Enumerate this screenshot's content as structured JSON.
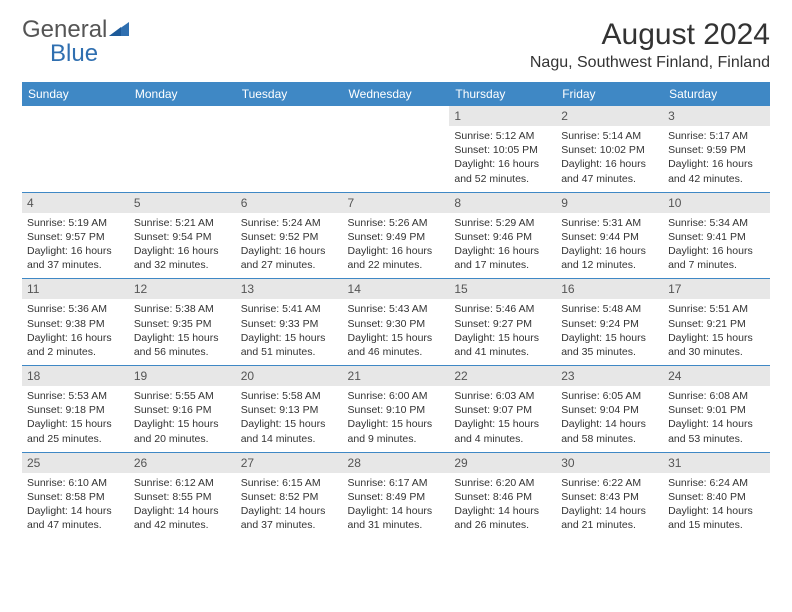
{
  "brand": {
    "part1": "General",
    "part2": "Blue"
  },
  "title": "August 2024",
  "location": "Nagu, Southwest Finland, Finland",
  "colors": {
    "header_bg": "#3f88c5",
    "header_text": "#ffffff",
    "daynum_bg": "#e7e7e7",
    "rule": "#3f88c5",
    "text": "#333333",
    "logo_blue": "#2f6fb0"
  },
  "weekdays": [
    "Sunday",
    "Monday",
    "Tuesday",
    "Wednesday",
    "Thursday",
    "Friday",
    "Saturday"
  ],
  "weeks": [
    [
      null,
      null,
      null,
      null,
      {
        "n": "1",
        "sr": "Sunrise: 5:12 AM",
        "ss": "Sunset: 10:05 PM",
        "d1": "Daylight: 16 hours",
        "d2": "and 52 minutes."
      },
      {
        "n": "2",
        "sr": "Sunrise: 5:14 AM",
        "ss": "Sunset: 10:02 PM",
        "d1": "Daylight: 16 hours",
        "d2": "and 47 minutes."
      },
      {
        "n": "3",
        "sr": "Sunrise: 5:17 AM",
        "ss": "Sunset: 9:59 PM",
        "d1": "Daylight: 16 hours",
        "d2": "and 42 minutes."
      }
    ],
    [
      {
        "n": "4",
        "sr": "Sunrise: 5:19 AM",
        "ss": "Sunset: 9:57 PM",
        "d1": "Daylight: 16 hours",
        "d2": "and 37 minutes."
      },
      {
        "n": "5",
        "sr": "Sunrise: 5:21 AM",
        "ss": "Sunset: 9:54 PM",
        "d1": "Daylight: 16 hours",
        "d2": "and 32 minutes."
      },
      {
        "n": "6",
        "sr": "Sunrise: 5:24 AM",
        "ss": "Sunset: 9:52 PM",
        "d1": "Daylight: 16 hours",
        "d2": "and 27 minutes."
      },
      {
        "n": "7",
        "sr": "Sunrise: 5:26 AM",
        "ss": "Sunset: 9:49 PM",
        "d1": "Daylight: 16 hours",
        "d2": "and 22 minutes."
      },
      {
        "n": "8",
        "sr": "Sunrise: 5:29 AM",
        "ss": "Sunset: 9:46 PM",
        "d1": "Daylight: 16 hours",
        "d2": "and 17 minutes."
      },
      {
        "n": "9",
        "sr": "Sunrise: 5:31 AM",
        "ss": "Sunset: 9:44 PM",
        "d1": "Daylight: 16 hours",
        "d2": "and 12 minutes."
      },
      {
        "n": "10",
        "sr": "Sunrise: 5:34 AM",
        "ss": "Sunset: 9:41 PM",
        "d1": "Daylight: 16 hours",
        "d2": "and 7 minutes."
      }
    ],
    [
      {
        "n": "11",
        "sr": "Sunrise: 5:36 AM",
        "ss": "Sunset: 9:38 PM",
        "d1": "Daylight: 16 hours",
        "d2": "and 2 minutes."
      },
      {
        "n": "12",
        "sr": "Sunrise: 5:38 AM",
        "ss": "Sunset: 9:35 PM",
        "d1": "Daylight: 15 hours",
        "d2": "and 56 minutes."
      },
      {
        "n": "13",
        "sr": "Sunrise: 5:41 AM",
        "ss": "Sunset: 9:33 PM",
        "d1": "Daylight: 15 hours",
        "d2": "and 51 minutes."
      },
      {
        "n": "14",
        "sr": "Sunrise: 5:43 AM",
        "ss": "Sunset: 9:30 PM",
        "d1": "Daylight: 15 hours",
        "d2": "and 46 minutes."
      },
      {
        "n": "15",
        "sr": "Sunrise: 5:46 AM",
        "ss": "Sunset: 9:27 PM",
        "d1": "Daylight: 15 hours",
        "d2": "and 41 minutes."
      },
      {
        "n": "16",
        "sr": "Sunrise: 5:48 AM",
        "ss": "Sunset: 9:24 PM",
        "d1": "Daylight: 15 hours",
        "d2": "and 35 minutes."
      },
      {
        "n": "17",
        "sr": "Sunrise: 5:51 AM",
        "ss": "Sunset: 9:21 PM",
        "d1": "Daylight: 15 hours",
        "d2": "and 30 minutes."
      }
    ],
    [
      {
        "n": "18",
        "sr": "Sunrise: 5:53 AM",
        "ss": "Sunset: 9:18 PM",
        "d1": "Daylight: 15 hours",
        "d2": "and 25 minutes."
      },
      {
        "n": "19",
        "sr": "Sunrise: 5:55 AM",
        "ss": "Sunset: 9:16 PM",
        "d1": "Daylight: 15 hours",
        "d2": "and 20 minutes."
      },
      {
        "n": "20",
        "sr": "Sunrise: 5:58 AM",
        "ss": "Sunset: 9:13 PM",
        "d1": "Daylight: 15 hours",
        "d2": "and 14 minutes."
      },
      {
        "n": "21",
        "sr": "Sunrise: 6:00 AM",
        "ss": "Sunset: 9:10 PM",
        "d1": "Daylight: 15 hours",
        "d2": "and 9 minutes."
      },
      {
        "n": "22",
        "sr": "Sunrise: 6:03 AM",
        "ss": "Sunset: 9:07 PM",
        "d1": "Daylight: 15 hours",
        "d2": "and 4 minutes."
      },
      {
        "n": "23",
        "sr": "Sunrise: 6:05 AM",
        "ss": "Sunset: 9:04 PM",
        "d1": "Daylight: 14 hours",
        "d2": "and 58 minutes."
      },
      {
        "n": "24",
        "sr": "Sunrise: 6:08 AM",
        "ss": "Sunset: 9:01 PM",
        "d1": "Daylight: 14 hours",
        "d2": "and 53 minutes."
      }
    ],
    [
      {
        "n": "25",
        "sr": "Sunrise: 6:10 AM",
        "ss": "Sunset: 8:58 PM",
        "d1": "Daylight: 14 hours",
        "d2": "and 47 minutes."
      },
      {
        "n": "26",
        "sr": "Sunrise: 6:12 AM",
        "ss": "Sunset: 8:55 PM",
        "d1": "Daylight: 14 hours",
        "d2": "and 42 minutes."
      },
      {
        "n": "27",
        "sr": "Sunrise: 6:15 AM",
        "ss": "Sunset: 8:52 PM",
        "d1": "Daylight: 14 hours",
        "d2": "and 37 minutes."
      },
      {
        "n": "28",
        "sr": "Sunrise: 6:17 AM",
        "ss": "Sunset: 8:49 PM",
        "d1": "Daylight: 14 hours",
        "d2": "and 31 minutes."
      },
      {
        "n": "29",
        "sr": "Sunrise: 6:20 AM",
        "ss": "Sunset: 8:46 PM",
        "d1": "Daylight: 14 hours",
        "d2": "and 26 minutes."
      },
      {
        "n": "30",
        "sr": "Sunrise: 6:22 AM",
        "ss": "Sunset: 8:43 PM",
        "d1": "Daylight: 14 hours",
        "d2": "and 21 minutes."
      },
      {
        "n": "31",
        "sr": "Sunrise: 6:24 AM",
        "ss": "Sunset: 8:40 PM",
        "d1": "Daylight: 14 hours",
        "d2": "and 15 minutes."
      }
    ]
  ]
}
